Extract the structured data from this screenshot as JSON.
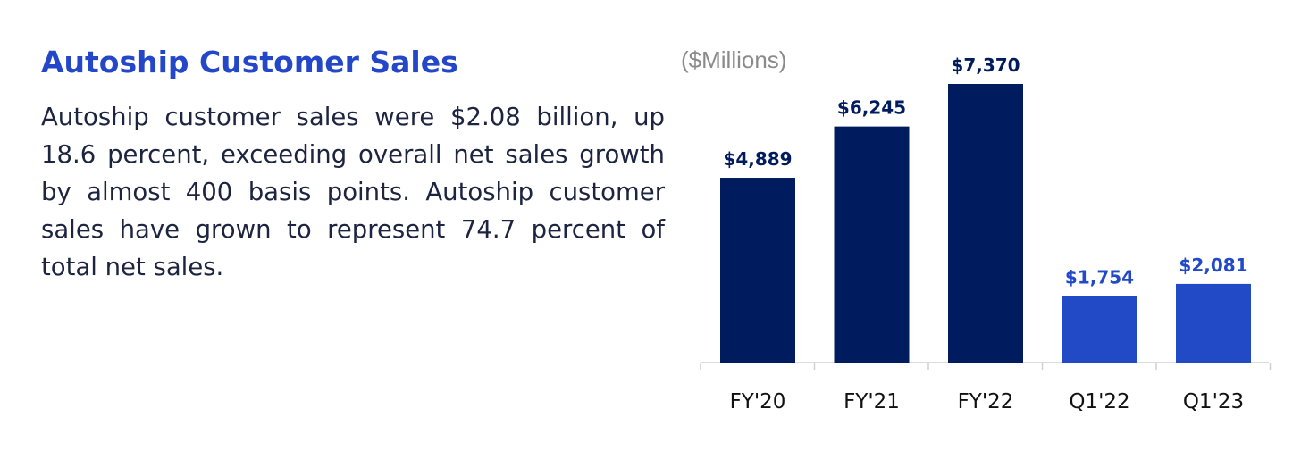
{
  "header": {
    "title": "Autoship Customer Sales"
  },
  "summary": {
    "text": "Autoship customer sales were $2.08 billion, up 18.6 percent, exceeding overall net sales growth by almost 400 basis points. Autoship customer sales have grown to represent 74.7 percent of total net sales."
  },
  "chart_data": {
    "type": "bar",
    "unit_label": "($Millions)",
    "categories": [
      "FY'20",
      "FY'21",
      "FY'22",
      "Q1'22",
      "Q1'23"
    ],
    "values": [
      4889,
      6245,
      7370,
      1754,
      2081
    ],
    "data_labels": [
      "$4,889",
      "$6,245",
      "$7,370",
      "$1,754",
      "$2,081"
    ],
    "ylim": [
      0,
      8000
    ],
    "grid": false,
    "legend": "none",
    "colors": {
      "annual_bar": "#001c5e",
      "quarter_bar": "#2249c6",
      "annual_label": "#001c5e",
      "quarter_label": "#2249c6",
      "axis": "#d0d0d0"
    },
    "bar_color_keys": [
      "annual",
      "annual",
      "annual",
      "quarter",
      "quarter"
    ]
  }
}
